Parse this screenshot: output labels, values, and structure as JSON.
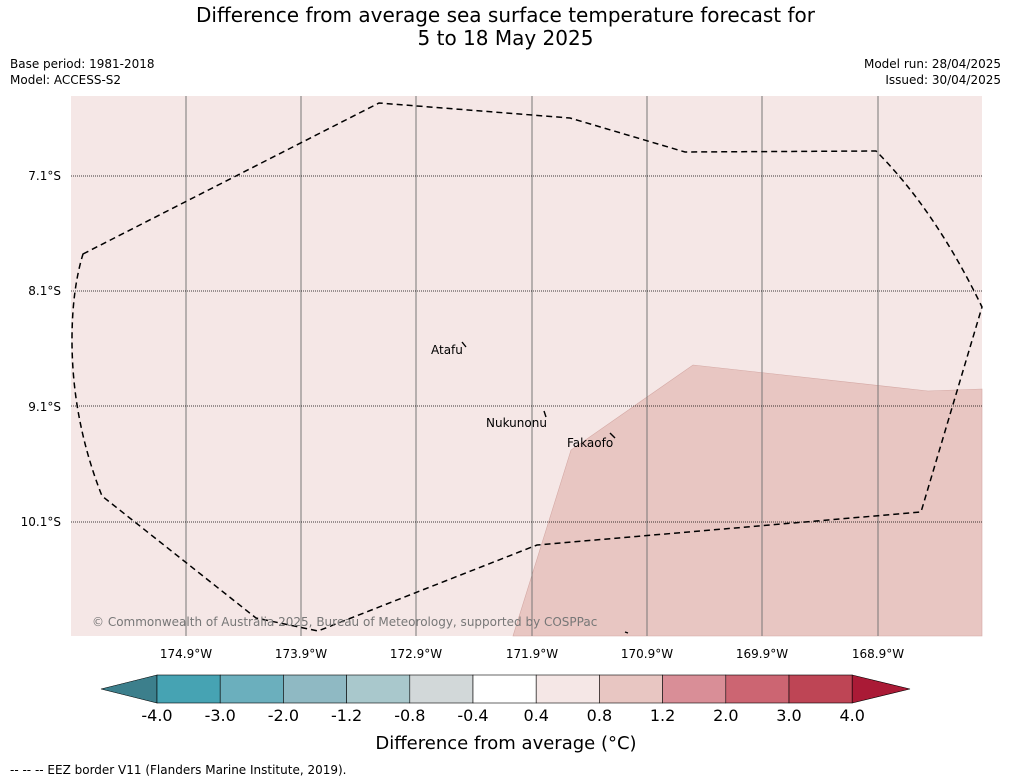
{
  "title_line1": "Difference from average sea surface temperature forecast for",
  "title_line2": "5 to 18 May 2025",
  "base_period": "Base period: 1981-2018",
  "model": "Model: ACCESS-S2",
  "model_run": "Model run: 28/04/2025",
  "issued": "Issued: 30/04/2025",
  "lat_labels": [
    "7.1°S",
    "8.1°S",
    "9.1°S",
    "10.1°S"
  ],
  "lon_labels": [
    "174.9°W",
    "173.9°W",
    "172.9°W",
    "171.9°W",
    "170.9°W",
    "169.9°W",
    "168.9°W"
  ],
  "places": {
    "atafu": "Atafu",
    "nukunonu": "Nukunonu",
    "fakaofo": "Fakaofo"
  },
  "copyright": "© Commonwealth of Australia 2025, Bureau of Meteorology, supported by COSPPac",
  "colorbar": {
    "ticks": [
      "-4.0",
      "-3.0",
      "-2.0",
      "-1.2",
      "-0.8",
      "-0.4",
      "0.4",
      "0.8",
      "1.2",
      "2.0",
      "3.0",
      "4.0"
    ],
    "colors": [
      "#3c7f8c",
      "#46a3b3",
      "#6bafbd",
      "#8fb9c3",
      "#a9c8cc",
      "#d2d8d9",
      "#ffffff",
      "#f5e7e6",
      "#e8c6c2",
      "#d98e97",
      "#cc6572",
      "#be4555",
      "#aa1a36"
    ],
    "label": "Difference from average (°C)"
  },
  "map_fill": {
    "background_class": "0.4 to 0.8",
    "background_color": "#f5e7e6",
    "patch_class": "0.8 to 1.2",
    "patch_color": "#e8c6c2"
  },
  "legend_note": "--  --  -- EEZ border V11 (Flanders Marine Institute, 2019)."
}
